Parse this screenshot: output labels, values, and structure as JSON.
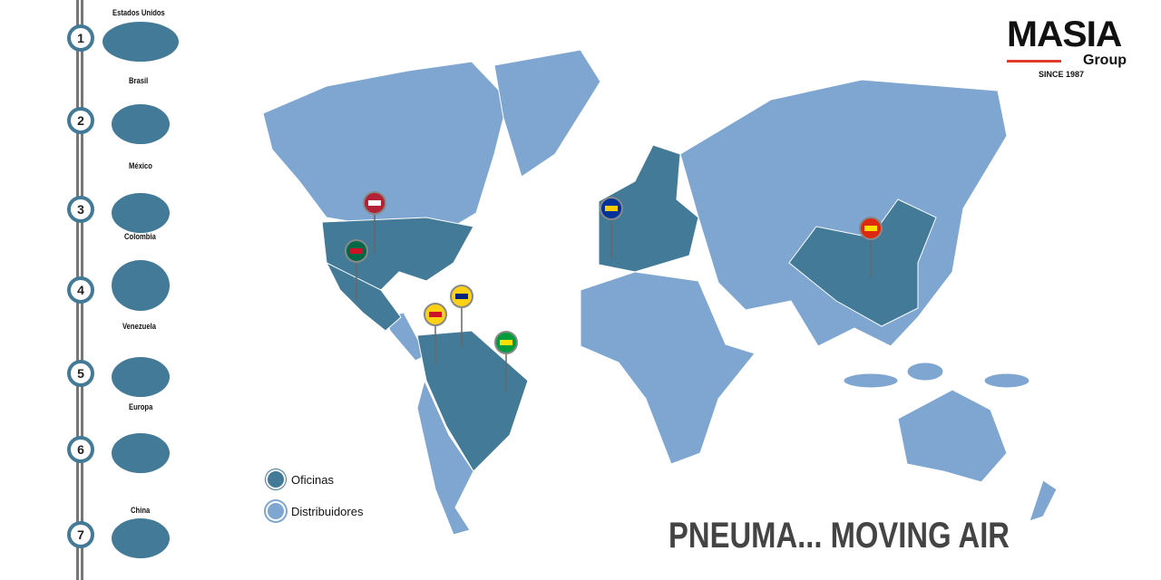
{
  "colors": {
    "office": "#437a98",
    "distributor": "#7ea6d0",
    "accent": "#e23a2e"
  },
  "logo": {
    "name": "MASIA",
    "sub": "Group",
    "since": "SINCE 1987"
  },
  "steps": [
    {
      "n": "1",
      "label": "Estados Unidos"
    },
    {
      "n": "2",
      "label": "Brasil"
    },
    {
      "n": "3",
      "label": "México"
    },
    {
      "n": "4",
      "label": "Colombia"
    },
    {
      "n": "5",
      "label": "Venezuela"
    },
    {
      "n": "6",
      "label": "Europa"
    },
    {
      "n": "7",
      "label": "China"
    }
  ],
  "legend": {
    "office": "Oficinas",
    "distributor": "Distribuidores"
  },
  "pins": [
    "usa-flag",
    "mexico-flag",
    "colombia-flag",
    "venezuela-flag",
    "brazil-flag",
    "eu-flag",
    "china-flag"
  ],
  "slogan": "PNEUMA... MOVING AIR"
}
